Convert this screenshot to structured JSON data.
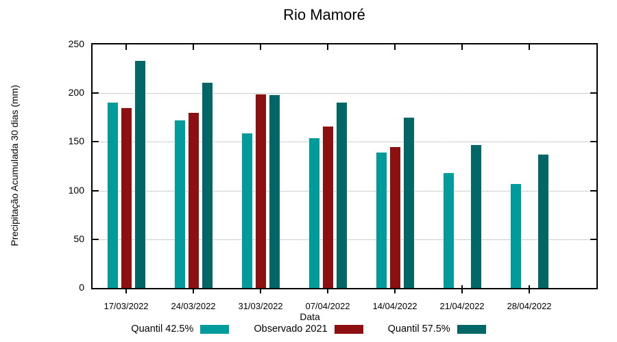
{
  "chart_data": {
    "type": "bar",
    "title": "Rio Mamoré",
    "xlabel": "Data",
    "ylabel": "Precipitação Acumulada 30 dias (mm)",
    "ylim": [
      0,
      250
    ],
    "yticks": [
      0,
      50,
      100,
      150,
      200,
      250
    ],
    "grid": true,
    "legend_position": "bottom",
    "categories": [
      "17/03/2022",
      "24/03/2022",
      "31/03/2022",
      "07/04/2022",
      "14/04/2022",
      "21/04/2022",
      "28/04/2022"
    ],
    "series": [
      {
        "name": "Quantil 42.5%",
        "color": "#009b9b",
        "values": [
          190,
          172,
          159,
          154,
          139,
          118,
          107
        ]
      },
      {
        "name": "Observado 2021",
        "color": "#8e0f0f",
        "values": [
          185,
          180,
          199,
          166,
          145,
          null,
          null
        ]
      },
      {
        "name": "Quantil 57.5%",
        "color": "#066",
        "values": [
          233,
          211,
          198,
          190,
          175,
          147,
          137
        ]
      }
    ],
    "colors": {
      "axis": "#000000",
      "grid": "#9e9e9e",
      "background": "#ffffff"
    }
  }
}
